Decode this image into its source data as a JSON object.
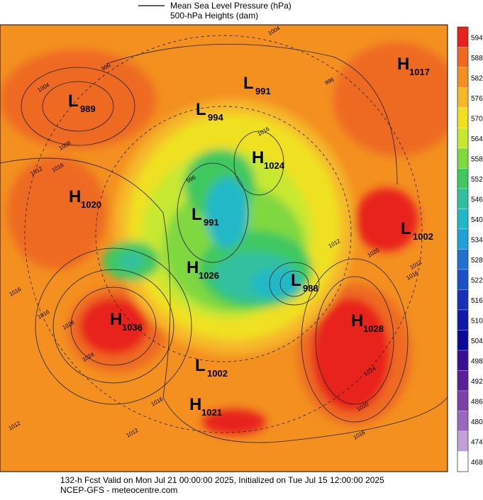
{
  "legend": {
    "mslp": "Mean Sea Level Pressure (hPa)",
    "heights": "500-hPa Heights (dam)"
  },
  "centers": [
    {
      "letter": "L",
      "value": 989
    },
    {
      "letter": "L",
      "value": 991
    },
    {
      "letter": "L",
      "value": 994
    },
    {
      "letter": "H",
      "value": 1017
    },
    {
      "letter": "H",
      "value": 1024
    },
    {
      "letter": "H",
      "value": 1020
    },
    {
      "letter": "L",
      "value": 991
    },
    {
      "letter": "L",
      "value": 1002
    },
    {
      "letter": "H",
      "value": 1026
    },
    {
      "letter": "L",
      "value": 988
    },
    {
      "letter": "H",
      "value": 1036
    },
    {
      "letter": "H",
      "value": 1028
    },
    {
      "letter": "L",
      "value": 1002
    },
    {
      "letter": "H",
      "value": 1021
    }
  ],
  "contour_labels": [
    1004,
    996,
    1004,
    1008,
    1012,
    1016,
    996,
    1016,
    1012,
    1020,
    1016,
    1012,
    1016,
    1028,
    1024,
    1016,
    1012,
    1012,
    1016,
    1024,
    1020,
    1016,
    996
  ],
  "colorbar": {
    "levels": [
      594,
      588,
      582,
      576,
      570,
      564,
      558,
      552,
      546,
      540,
      534,
      528,
      522,
      516,
      510,
      504,
      498,
      492,
      486,
      480,
      474,
      468
    ],
    "colors": [
      "#e8201e",
      "#ee6a22",
      "#f39020",
      "#f5b829",
      "#f0e020",
      "#c8e830",
      "#80d840",
      "#40c860",
      "#30c0a0",
      "#20b8c8",
      "#20a0d8",
      "#2070d0",
      "#1a50c8",
      "#1830b8",
      "#1018a8",
      "#0a0a98",
      "#3a1090",
      "#5a2098",
      "#7a40a8",
      "#9a68c0",
      "#c0a0d8",
      "#ffffff"
    ]
  },
  "footer": {
    "line1": "132-h Fcst Valid on Mon Jul 21 00:00:00 2025, Initialized on Tue Jul 15 12:00:00 2025",
    "line2": "NCEP-GFS  -  meteocentre.com"
  }
}
